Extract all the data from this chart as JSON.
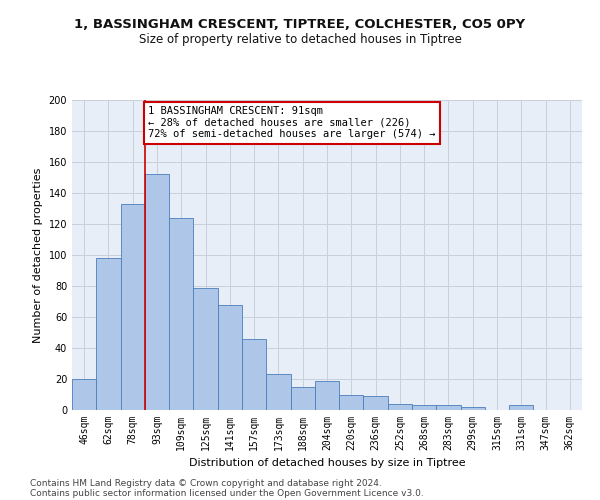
{
  "title": "1, BASSINGHAM CRESCENT, TIPTREE, COLCHESTER, CO5 0PY",
  "subtitle": "Size of property relative to detached houses in Tiptree",
  "xlabel": "Distribution of detached houses by size in Tiptree",
  "ylabel": "Number of detached properties",
  "categories": [
    "46sqm",
    "62sqm",
    "78sqm",
    "93sqm",
    "109sqm",
    "125sqm",
    "141sqm",
    "157sqm",
    "173sqm",
    "188sqm",
    "204sqm",
    "220sqm",
    "236sqm",
    "252sqm",
    "268sqm",
    "283sqm",
    "299sqm",
    "315sqm",
    "331sqm",
    "347sqm",
    "362sqm"
  ],
  "values": [
    20,
    98,
    133,
    152,
    124,
    79,
    68,
    46,
    23,
    15,
    19,
    10,
    9,
    4,
    3,
    3,
    2,
    0,
    3,
    0,
    0
  ],
  "bar_color": "#aec6e8",
  "bar_edge_color": "#4a7ebb",
  "vline_x_index": 3,
  "vline_color": "#cc0000",
  "annotation_text": "1 BASSINGHAM CRESCENT: 91sqm\n← 28% of detached houses are smaller (226)\n72% of semi-detached houses are larger (574) →",
  "annotation_box_color": "#ffffff",
  "annotation_box_edge_color": "#cc0000",
  "ylim": [
    0,
    200
  ],
  "yticks": [
    0,
    20,
    40,
    60,
    80,
    100,
    120,
    140,
    160,
    180,
    200
  ],
  "grid_color": "#c8d0dc",
  "background_color": "#e8eef8",
  "footer_line1": "Contains HM Land Registry data © Crown copyright and database right 2024.",
  "footer_line2": "Contains public sector information licensed under the Open Government Licence v3.0.",
  "title_fontsize": 9.5,
  "subtitle_fontsize": 8.5,
  "xlabel_fontsize": 8,
  "ylabel_fontsize": 8,
  "tick_fontsize": 7,
  "annotation_fontsize": 7.5,
  "footer_fontsize": 6.5
}
